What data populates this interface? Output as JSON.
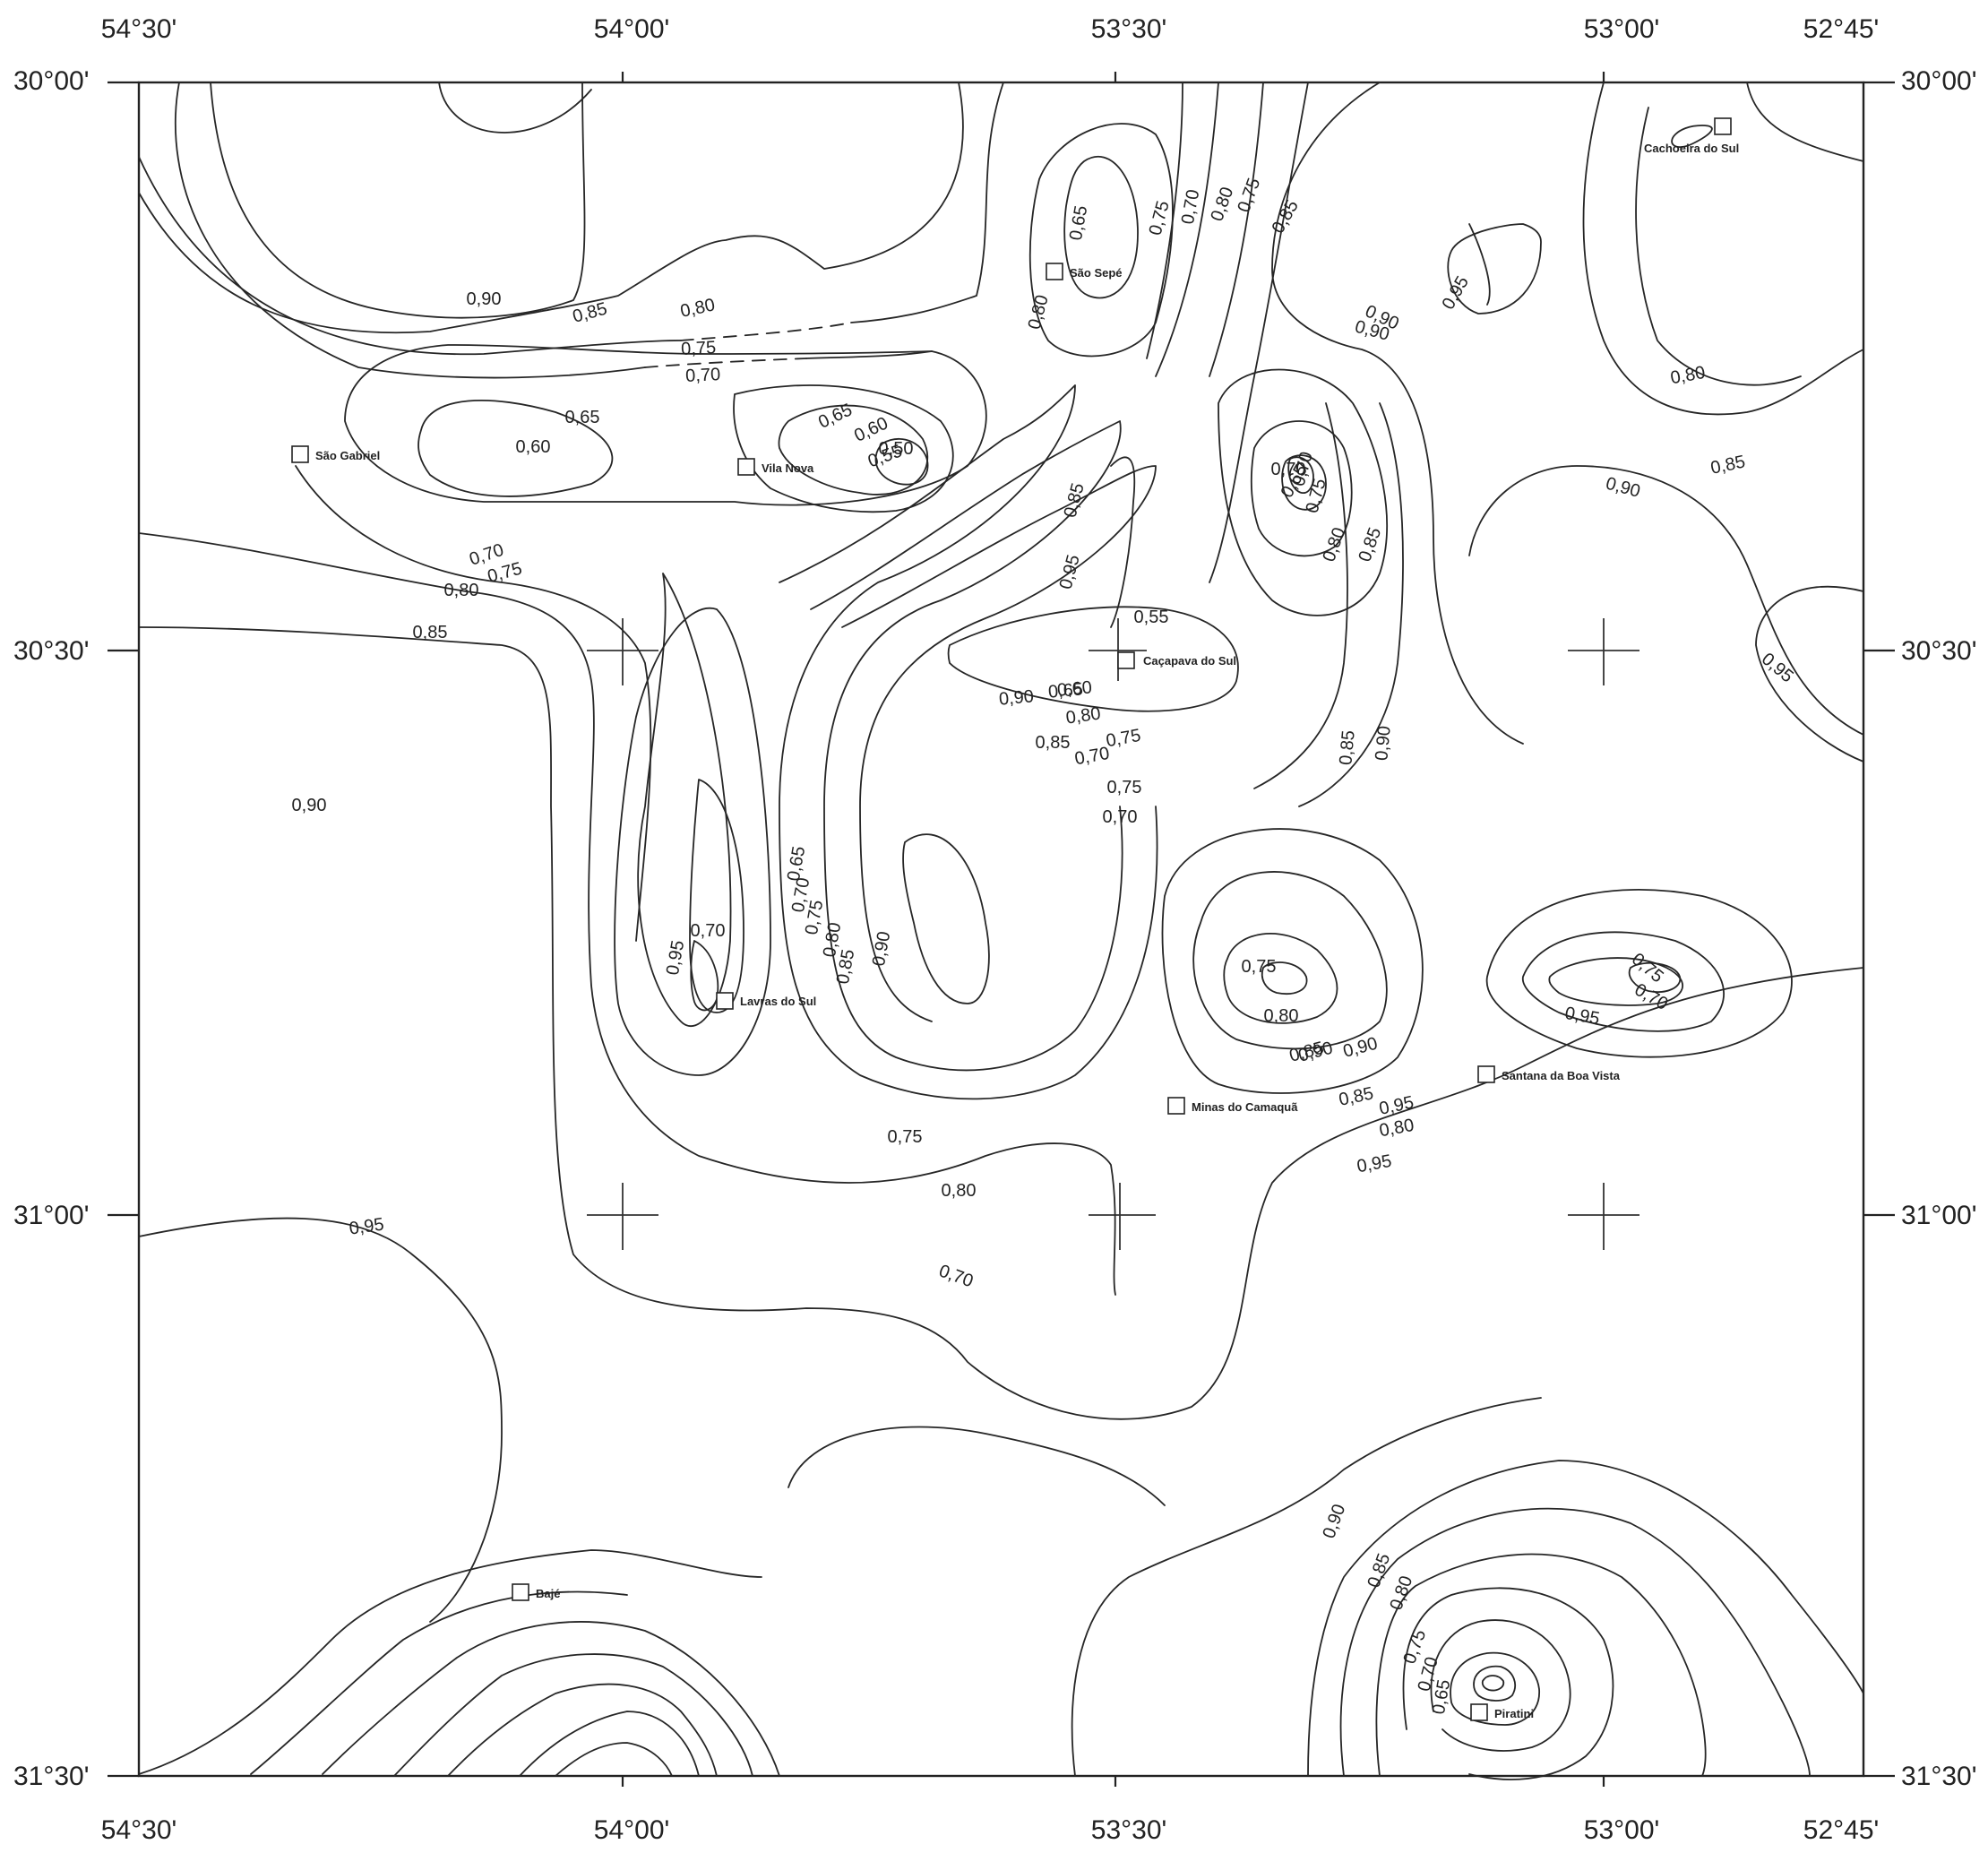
{
  "map": {
    "lon_labels_top": [
      "54°30'",
      "54°00'",
      "53°30'",
      "53°00'",
      "52°45'"
    ],
    "lon_labels_bottom": [
      "54°30'",
      "54°00'",
      "53°30'",
      "53°00'",
      "52°45'"
    ],
    "lat_labels_left": [
      "30°00'",
      "30°30'",
      "31°00'",
      "31°30'"
    ],
    "lat_labels_right": [
      "30°00'",
      "30°30'",
      "31°00'",
      "31°30'"
    ],
    "towns": [
      {
        "name": "São Gabriel"
      },
      {
        "name": "Vila Nova"
      },
      {
        "name": "São Sepé"
      },
      {
        "name": "Caçapava do Sul"
      },
      {
        "name": "Cachoeira do Sul"
      },
      {
        "name": "Lavras do Sul"
      },
      {
        "name": "Minas do Camaquã"
      },
      {
        "name": "Santana da Boa Vista"
      },
      {
        "name": "Bajé"
      },
      {
        "name": "Piratini"
      }
    ],
    "contour_labels": [
      "0,90",
      "0,85",
      "0,80",
      "0,75",
      "0,70",
      "0,65",
      "0,60",
      "0,65",
      "0,60",
      "0,55",
      "0,50",
      "0,70",
      "0,75",
      "0,80",
      "0,85",
      "0,90",
      "0,95",
      "0,95",
      "0,85",
      "0,80",
      "0,75",
      "0,70",
      "0,65",
      "0,70",
      "0,75",
      "0,80",
      "0,85",
      "0,90",
      "0,95",
      "0,65",
      "0,70",
      "0,75",
      "0,80",
      "0,85",
      "0,90",
      "0,80",
      "0,85",
      "0,90",
      "0,85",
      "0,90",
      "0,95",
      "0,75",
      "0,70",
      "0,65",
      "0,60",
      "0,55",
      "0,70",
      "0,75",
      "0,80",
      "0,85",
      "0,90",
      "0,65",
      "0,70",
      "0,75",
      "0,80",
      "0,85",
      "0,90",
      "0,95",
      "0,70",
      "0,75",
      "0,80",
      "0,70",
      "0,75",
      "0,80",
      "0,85",
      "0,90",
      "0,95",
      "0,95",
      "0,90",
      "0,85",
      "0,80",
      "0,75",
      "0,70",
      "0,95",
      "0,90",
      "0,85",
      "0,80",
      "0,75",
      "0,70",
      "0,65"
    ]
  }
}
